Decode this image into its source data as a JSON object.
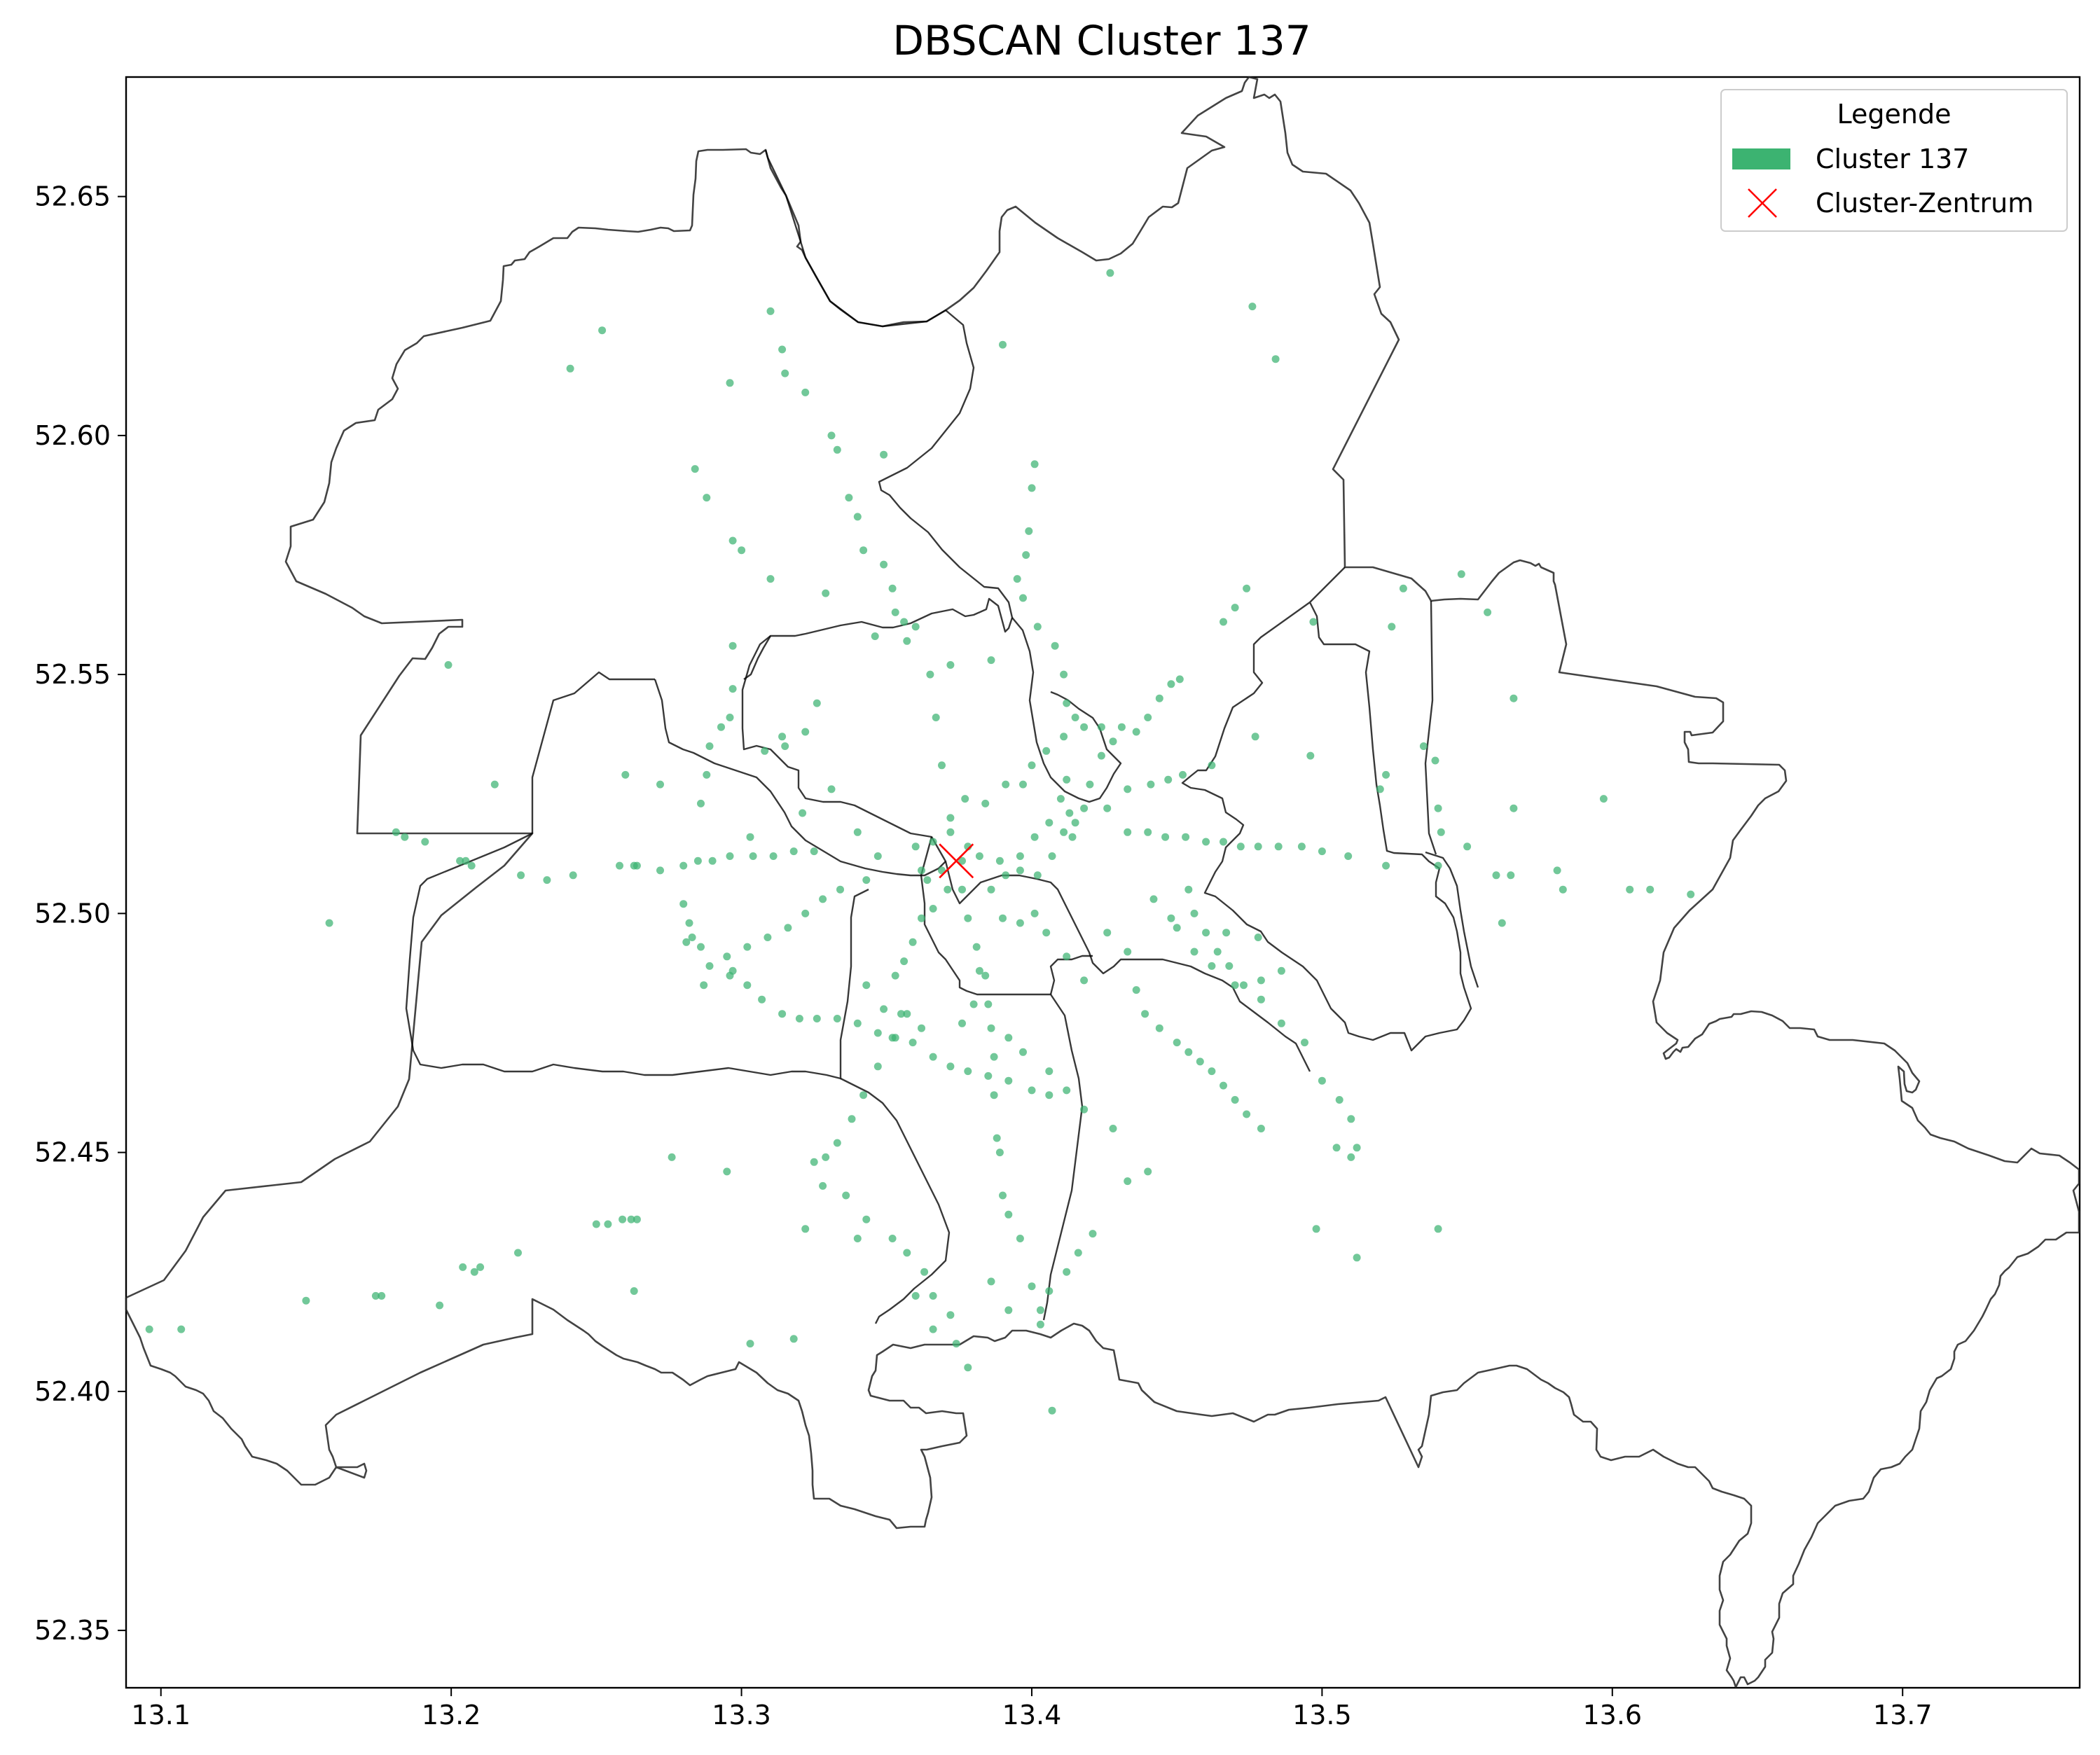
{
  "chart_data": {
    "type": "scatter",
    "title": "DBSCAN Cluster 137",
    "xlabel": "",
    "ylabel": "",
    "xlim": [
      13.088,
      13.761
    ],
    "ylim": [
      52.338,
      52.675
    ],
    "xticks": [
      13.1,
      13.2,
      13.3,
      13.4,
      13.5,
      13.6,
      13.7
    ],
    "xtick_labels": [
      "13.1",
      "13.2",
      "13.3",
      "13.4",
      "13.5",
      "13.6",
      "13.7"
    ],
    "yticks": [
      52.35,
      52.4,
      52.45,
      52.5,
      52.55,
      52.6,
      52.65
    ],
    "ytick_labels": [
      "52.35",
      "52.40",
      "52.45",
      "52.50",
      "52.55",
      "52.60",
      "52.65"
    ],
    "legend": {
      "title": "Legende",
      "position": "top-right",
      "entries": [
        {
          "label": "Cluster 137",
          "marker": "patch",
          "color": "#3cb371"
        },
        {
          "label": "Cluster-Zentrum",
          "marker": "x",
          "color": "#ff0000"
        }
      ]
    },
    "center": {
      "x": 13.374,
      "y": 52.511,
      "color": "#ff0000"
    },
    "point_color": "#3cb371",
    "points": [
      [
        13.31,
        52.626
      ],
      [
        13.314,
        52.618
      ],
      [
        13.315,
        52.613
      ],
      [
        13.322,
        52.609
      ],
      [
        13.331,
        52.6
      ],
      [
        13.333,
        52.597
      ],
      [
        13.337,
        52.587
      ],
      [
        13.34,
        52.583
      ],
      [
        13.342,
        52.576
      ],
      [
        13.349,
        52.573
      ],
      [
        13.352,
        52.568
      ],
      [
        13.353,
        52.563
      ],
      [
        13.356,
        52.561
      ],
      [
        13.357,
        52.557
      ],
      [
        13.36,
        52.56
      ],
      [
        13.365,
        52.55
      ],
      [
        13.367,
        52.541
      ],
      [
        13.369,
        52.531
      ],
      [
        13.372,
        52.517
      ],
      [
        13.376,
        52.505
      ],
      [
        13.378,
        52.499
      ],
      [
        13.381,
        52.493
      ],
      [
        13.382,
        52.488
      ],
      [
        13.385,
        52.481
      ],
      [
        13.386,
        52.476
      ],
      [
        13.387,
        52.47
      ],
      [
        13.387,
        52.462
      ],
      [
        13.388,
        52.453
      ],
      [
        13.389,
        52.45
      ],
      [
        13.39,
        52.441
      ],
      [
        13.392,
        52.437
      ],
      [
        13.396,
        52.432
      ],
      [
        13.4,
        52.422
      ],
      [
        13.403,
        52.417
      ],
      [
        13.407,
        52.396
      ],
      [
        13.401,
        52.594
      ],
      [
        13.4,
        52.589
      ],
      [
        13.399,
        52.58
      ],
      [
        13.398,
        52.575
      ],
      [
        13.395,
        52.57
      ],
      [
        13.397,
        52.566
      ],
      [
        13.402,
        52.56
      ],
      [
        13.408,
        52.556
      ],
      [
        13.411,
        52.55
      ],
      [
        13.412,
        52.544
      ],
      [
        13.411,
        52.537
      ],
      [
        13.412,
        52.528
      ],
      [
        13.413,
        52.521
      ],
      [
        13.414,
        52.516
      ],
      [
        13.451,
        52.549
      ],
      [
        13.448,
        52.548
      ],
      [
        13.444,
        52.545
      ],
      [
        13.44,
        52.541
      ],
      [
        13.436,
        52.538
      ],
      [
        13.431,
        52.539
      ],
      [
        13.428,
        52.536
      ],
      [
        13.424,
        52.533
      ],
      [
        13.42,
        52.527
      ],
      [
        13.418,
        52.522
      ],
      [
        13.415,
        52.519
      ],
      [
        13.411,
        52.517
      ],
      [
        13.158,
        52.498
      ],
      [
        13.181,
        52.517
      ],
      [
        13.184,
        52.516
      ],
      [
        13.191,
        52.515
      ],
      [
        13.203,
        52.511
      ],
      [
        13.207,
        52.51
      ],
      [
        13.224,
        52.508
      ],
      [
        13.242,
        52.508
      ],
      [
        13.258,
        52.51
      ],
      [
        13.263,
        52.51
      ],
      [
        13.272,
        52.509
      ],
      [
        13.28,
        52.51
      ],
      [
        13.285,
        52.511
      ],
      [
        13.29,
        52.511
      ],
      [
        13.296,
        52.512
      ],
      [
        13.304,
        52.512
      ],
      [
        13.311,
        52.512
      ],
      [
        13.318,
        52.513
      ],
      [
        13.325,
        52.513
      ],
      [
        13.286,
        52.523
      ],
      [
        13.288,
        52.529
      ],
      [
        13.289,
        52.535
      ],
      [
        13.293,
        52.539
      ],
      [
        13.296,
        52.541
      ],
      [
        13.297,
        52.547
      ],
      [
        13.314,
        52.537
      ],
      [
        13.322,
        52.538
      ],
      [
        13.326,
        52.544
      ],
      [
        13.331,
        52.526
      ],
      [
        13.321,
        52.521
      ],
      [
        13.315,
        52.535
      ],
      [
        13.308,
        52.534
      ],
      [
        13.303,
        52.516
      ],
      [
        13.28,
        52.502
      ],
      [
        13.282,
        52.498
      ],
      [
        13.283,
        52.495
      ],
      [
        13.286,
        52.493
      ],
      [
        13.289,
        52.489
      ],
      [
        13.296,
        52.487
      ],
      [
        13.302,
        52.485
      ],
      [
        13.307,
        52.482
      ],
      [
        13.314,
        52.479
      ],
      [
        13.32,
        52.478
      ],
      [
        13.326,
        52.478
      ],
      [
        13.333,
        52.478
      ],
      [
        13.34,
        52.477
      ],
      [
        13.347,
        52.475
      ],
      [
        13.352,
        52.474
      ],
      [
        13.359,
        52.473
      ],
      [
        13.366,
        52.47
      ],
      [
        13.372,
        52.468
      ],
      [
        13.378,
        52.467
      ],
      [
        13.385,
        52.466
      ],
      [
        13.392,
        52.465
      ],
      [
        13.4,
        52.463
      ],
      [
        13.406,
        52.462
      ],
      [
        13.343,
        52.485
      ],
      [
        13.349,
        52.48
      ],
      [
        13.353,
        52.487
      ],
      [
        13.356,
        52.49
      ],
      [
        13.359,
        52.494
      ],
      [
        13.362,
        52.499
      ],
      [
        13.366,
        52.501
      ],
      [
        13.371,
        52.505
      ],
      [
        13.386,
        52.505
      ],
      [
        13.391,
        52.508
      ],
      [
        13.396,
        52.512
      ],
      [
        13.401,
        52.516
      ],
      [
        13.406,
        52.519
      ],
      [
        13.41,
        52.524
      ],
      [
        13.426,
        52.522
      ],
      [
        13.433,
        52.526
      ],
      [
        13.441,
        52.527
      ],
      [
        13.447,
        52.528
      ],
      [
        13.452,
        52.529
      ],
      [
        13.433,
        52.517
      ],
      [
        13.44,
        52.517
      ],
      [
        13.446,
        52.516
      ],
      [
        13.453,
        52.516
      ],
      [
        13.46,
        52.515
      ],
      [
        13.466,
        52.515
      ],
      [
        13.472,
        52.514
      ],
      [
        13.478,
        52.514
      ],
      [
        13.485,
        52.514
      ],
      [
        13.493,
        52.514
      ],
      [
        13.5,
        52.513
      ],
      [
        13.509,
        52.512
      ],
      [
        13.522,
        52.51
      ],
      [
        13.54,
        52.51
      ],
      [
        13.56,
        52.508
      ],
      [
        13.583,
        52.505
      ],
      [
        13.606,
        52.505
      ],
      [
        13.613,
        52.505
      ],
      [
        13.627,
        52.504
      ],
      [
        13.454,
        52.505
      ],
      [
        13.456,
        52.5
      ],
      [
        13.46,
        52.496
      ],
      [
        13.464,
        52.492
      ],
      [
        13.468,
        52.489
      ],
      [
        13.473,
        52.485
      ],
      [
        13.479,
        52.482
      ],
      [
        13.486,
        52.477
      ],
      [
        13.494,
        52.473
      ],
      [
        13.5,
        52.465
      ],
      [
        13.506,
        52.461
      ],
      [
        13.51,
        52.457
      ],
      [
        13.512,
        52.451
      ],
      [
        13.51,
        52.449
      ],
      [
        13.505,
        52.451
      ],
      [
        13.426,
        52.496
      ],
      [
        13.433,
        52.492
      ],
      [
        13.436,
        52.484
      ],
      [
        13.439,
        52.479
      ],
      [
        13.444,
        52.476
      ],
      [
        13.45,
        52.473
      ],
      [
        13.454,
        52.471
      ],
      [
        13.458,
        52.469
      ],
      [
        13.462,
        52.467
      ],
      [
        13.466,
        52.464
      ],
      [
        13.47,
        52.461
      ],
      [
        13.474,
        52.458
      ],
      [
        13.479,
        52.455
      ],
      [
        13.357,
        52.479
      ],
      [
        13.353,
        52.474
      ],
      [
        13.347,
        52.468
      ],
      [
        13.342,
        52.462
      ],
      [
        13.338,
        52.457
      ],
      [
        13.333,
        52.452
      ],
      [
        13.329,
        52.449
      ],
      [
        13.325,
        52.448
      ],
      [
        13.328,
        52.443
      ],
      [
        13.336,
        52.441
      ],
      [
        13.343,
        52.436
      ],
      [
        13.352,
        52.432
      ],
      [
        13.357,
        52.429
      ],
      [
        13.363,
        52.425
      ],
      [
        13.366,
        52.42
      ],
      [
        13.372,
        52.416
      ],
      [
        13.374,
        52.41
      ],
      [
        13.378,
        52.405
      ],
      [
        13.366,
        52.413
      ],
      [
        13.254,
        52.435
      ],
      [
        13.259,
        52.436
      ],
      [
        13.262,
        52.436
      ],
      [
        13.264,
        52.436
      ],
      [
        13.263,
        52.421
      ],
      [
        13.223,
        52.429
      ],
      [
        13.208,
        52.425
      ],
      [
        13.204,
        52.426
      ],
      [
        13.196,
        52.418
      ],
      [
        13.176,
        52.42
      ],
      [
        13.174,
        52.42
      ],
      [
        13.15,
        52.419
      ],
      [
        13.107,
        52.413
      ],
      [
        13.096,
        52.413
      ],
      [
        13.303,
        52.41
      ],
      [
        13.318,
        52.411
      ],
      [
        13.421,
        52.433
      ],
      [
        13.416,
        52.429
      ],
      [
        13.412,
        52.425
      ],
      [
        13.406,
        52.421
      ],
      [
        13.403,
        52.414
      ],
      [
        13.44,
        52.446
      ],
      [
        13.433,
        52.444
      ],
      [
        13.428,
        52.455
      ],
      [
        13.418,
        52.459
      ],
      [
        13.412,
        52.463
      ],
      [
        13.406,
        52.467
      ],
      [
        13.397,
        52.471
      ],
      [
        13.392,
        52.474
      ],
      [
        13.427,
        52.634
      ],
      [
        13.39,
        52.619
      ],
      [
        13.296,
        52.611
      ],
      [
        13.252,
        52.622
      ],
      [
        13.241,
        52.614
      ],
      [
        13.284,
        52.593
      ],
      [
        13.288,
        52.587
      ],
      [
        13.297,
        52.578
      ],
      [
        13.3,
        52.576
      ],
      [
        13.349,
        52.596
      ],
      [
        13.31,
        52.57
      ],
      [
        13.297,
        52.556
      ],
      [
        13.329,
        52.567
      ],
      [
        13.346,
        52.558
      ],
      [
        13.386,
        52.553
      ],
      [
        13.372,
        52.552
      ],
      [
        13.476,
        52.627
      ],
      [
        13.484,
        52.616
      ],
      [
        13.474,
        52.568
      ],
      [
        13.47,
        52.564
      ],
      [
        13.466,
        52.561
      ],
      [
        13.497,
        52.561
      ],
      [
        13.528,
        52.568
      ],
      [
        13.524,
        52.56
      ],
      [
        13.548,
        52.571
      ],
      [
        13.557,
        52.563
      ],
      [
        13.566,
        52.545
      ],
      [
        13.535,
        52.535
      ],
      [
        13.522,
        52.529
      ],
      [
        13.52,
        52.526
      ],
      [
        13.496,
        52.533
      ],
      [
        13.477,
        52.537
      ],
      [
        13.462,
        52.531
      ],
      [
        13.54,
        52.522
      ],
      [
        13.541,
        52.517
      ],
      [
        13.566,
        52.522
      ],
      [
        13.597,
        52.524
      ],
      [
        13.581,
        52.509
      ],
      [
        13.565,
        52.508
      ],
      [
        13.562,
        52.498
      ],
      [
        13.55,
        52.514
      ],
      [
        13.539,
        52.532
      ],
      [
        13.407,
        52.512
      ],
      [
        13.402,
        52.508
      ],
      [
        13.396,
        52.509
      ],
      [
        13.389,
        52.511
      ],
      [
        13.382,
        52.512
      ],
      [
        13.378,
        52.514
      ],
      [
        13.376,
        52.511
      ],
      [
        13.369,
        52.509
      ],
      [
        13.366,
        52.515
      ],
      [
        13.36,
        52.514
      ],
      [
        13.362,
        52.509
      ],
      [
        13.364,
        52.507
      ],
      [
        13.372,
        52.52
      ],
      [
        13.377,
        52.524
      ],
      [
        13.384,
        52.523
      ],
      [
        13.391,
        52.527
      ],
      [
        13.397,
        52.527
      ],
      [
        13.4,
        52.531
      ],
      [
        13.405,
        52.534
      ],
      [
        13.415,
        52.541
      ],
      [
        13.418,
        52.539
      ],
      [
        13.424,
        52.539
      ],
      [
        13.34,
        52.517
      ],
      [
        13.347,
        52.512
      ],
      [
        13.343,
        52.507
      ],
      [
        13.334,
        52.505
      ],
      [
        13.328,
        52.503
      ],
      [
        13.322,
        52.5
      ],
      [
        13.316,
        52.497
      ],
      [
        13.309,
        52.495
      ],
      [
        13.302,
        52.493
      ],
      [
        13.295,
        52.491
      ],
      [
        13.498,
        52.434
      ],
      [
        13.512,
        52.428
      ],
      [
        13.54,
        52.434
      ],
      [
        13.392,
        52.417
      ],
      [
        13.386,
        52.423
      ],
      [
        13.36,
        52.42
      ],
      [
        13.34,
        52.432
      ],
      [
        13.322,
        52.434
      ],
      [
        13.295,
        52.446
      ],
      [
        13.276,
        52.449
      ],
      [
        13.25,
        52.435
      ],
      [
        13.21,
        52.426
      ],
      [
        13.418,
        52.486
      ],
      [
        13.412,
        52.491
      ],
      [
        13.405,
        52.496
      ],
      [
        13.401,
        52.5
      ],
      [
        13.396,
        52.498
      ],
      [
        13.39,
        52.499
      ],
      [
        13.384,
        52.487
      ],
      [
        13.38,
        52.481
      ],
      [
        13.376,
        52.477
      ],
      [
        13.362,
        52.476
      ],
      [
        13.355,
        52.479
      ],
      [
        13.442,
        52.503
      ],
      [
        13.448,
        52.499
      ],
      [
        13.45,
        52.497
      ],
      [
        13.456,
        52.492
      ],
      [
        13.462,
        52.489
      ],
      [
        13.47,
        52.485
      ],
      [
        13.479,
        52.486
      ],
      [
        13.486,
        52.488
      ],
      [
        13.478,
        52.495
      ],
      [
        13.467,
        52.496
      ],
      [
        13.272,
        52.527
      ],
      [
        13.26,
        52.529
      ],
      [
        13.215,
        52.527
      ],
      [
        13.199,
        52.552
      ],
      [
        13.205,
        52.511
      ],
      [
        13.233,
        52.507
      ],
      [
        13.264,
        52.51
      ],
      [
        13.297,
        52.488
      ],
      [
        13.287,
        52.485
      ],
      [
        13.281,
        52.494
      ]
    ]
  }
}
